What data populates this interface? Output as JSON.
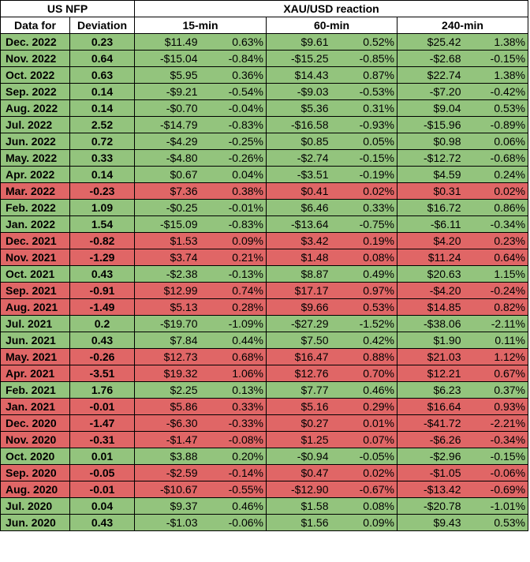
{
  "header": {
    "group_left": "US NFP",
    "group_right": "XAU/USD reaction",
    "col_date": "Data for",
    "col_deviation": "Deviation",
    "col_15": "15-min",
    "col_60": "60-min",
    "col_240": "240-min"
  },
  "colors": {
    "positive_row": "#93c47d",
    "negative_row": "#e06666"
  },
  "rows": [
    {
      "date": "Dec. 2022",
      "dev": "0.23",
      "sign": "pos",
      "d15": "$11.49",
      "p15": "0.63%",
      "d60": "$9.61",
      "p60": "0.52%",
      "d240": "$25.42",
      "p240": "1.38%"
    },
    {
      "date": "Nov. 2022",
      "dev": "0.64",
      "sign": "pos",
      "d15": "-$15.04",
      "p15": "-0.84%",
      "d60": "-$15.25",
      "p60": "-0.85%",
      "d240": "-$2.68",
      "p240": "-0.15%"
    },
    {
      "date": "Oct. 2022",
      "dev": "0.63",
      "sign": "pos",
      "d15": "$5.95",
      "p15": "0.36%",
      "d60": "$14.43",
      "p60": "0.87%",
      "d240": "$22.74",
      "p240": "1.38%"
    },
    {
      "date": "Sep. 2022",
      "dev": "0.14",
      "sign": "pos",
      "d15": "-$9.21",
      "p15": "-0.54%",
      "d60": "-$9.03",
      "p60": "-0.53%",
      "d240": "-$7.20",
      "p240": "-0.42%"
    },
    {
      "date": "Aug. 2022",
      "dev": "0.14",
      "sign": "pos",
      "d15": "-$0.70",
      "p15": "-0.04%",
      "d60": "$5.36",
      "p60": "0.31%",
      "d240": "$9.04",
      "p240": "0.53%"
    },
    {
      "date": "Jul. 2022",
      "dev": "2.52",
      "sign": "pos",
      "d15": "-$14.79",
      "p15": "-0.83%",
      "d60": "-$16.58",
      "p60": "-0.93%",
      "d240": "-$15.96",
      "p240": "-0.89%"
    },
    {
      "date": "Jun. 2022",
      "dev": "0.72",
      "sign": "pos",
      "d15": "-$4.29",
      "p15": "-0.25%",
      "d60": "$0.85",
      "p60": "0.05%",
      "d240": "$0.98",
      "p240": "0.06%"
    },
    {
      "date": "May. 2022",
      "dev": "0.33",
      "sign": "pos",
      "d15": "-$4.80",
      "p15": "-0.26%",
      "d60": "-$2.74",
      "p60": "-0.15%",
      "d240": "-$12.72",
      "p240": "-0.68%"
    },
    {
      "date": "Apr. 2022",
      "dev": "0.14",
      "sign": "pos",
      "d15": "$0.67",
      "p15": "0.04%",
      "d60": "-$3.51",
      "p60": "-0.19%",
      "d240": "$4.59",
      "p240": "0.24%"
    },
    {
      "date": "Mar. 2022",
      "dev": "-0.23",
      "sign": "neg",
      "d15": "$7.36",
      "p15": "0.38%",
      "d60": "$0.41",
      "p60": "0.02%",
      "d240": "$0.31",
      "p240": "0.02%"
    },
    {
      "date": "Feb. 2022",
      "dev": "1.09",
      "sign": "pos",
      "d15": "-$0.25",
      "p15": "-0.01%",
      "d60": "$6.46",
      "p60": "0.33%",
      "d240": "$16.72",
      "p240": "0.86%"
    },
    {
      "date": "Jan. 2022",
      "dev": "1.54",
      "sign": "pos",
      "d15": "-$15.09",
      "p15": "-0.83%",
      "d60": "-$13.64",
      "p60": "-0.75%",
      "d240": "-$6.11",
      "p240": "-0.34%"
    },
    {
      "date": "Dec. 2021",
      "dev": "-0.82",
      "sign": "neg",
      "d15": "$1.53",
      "p15": "0.09%",
      "d60": "$3.42",
      "p60": "0.19%",
      "d240": "$4.20",
      "p240": "0.23%"
    },
    {
      "date": "Nov. 2021",
      "dev": "-1.29",
      "sign": "neg",
      "d15": "$3.74",
      "p15": "0.21%",
      "d60": "$1.48",
      "p60": "0.08%",
      "d240": "$11.24",
      "p240": "0.64%"
    },
    {
      "date": "Oct. 2021",
      "dev": "0.43",
      "sign": "pos",
      "d15": "-$2.38",
      "p15": "-0.13%",
      "d60": "$8.87",
      "p60": "0.49%",
      "d240": "$20.63",
      "p240": "1.15%"
    },
    {
      "date": "Sep. 2021",
      "dev": "-0.91",
      "sign": "neg",
      "d15": "$12.99",
      "p15": "0.74%",
      "d60": "$17.17",
      "p60": "0.97%",
      "d240": "-$4.20",
      "p240": "-0.24%"
    },
    {
      "date": "Aug. 2021",
      "dev": "-1.49",
      "sign": "neg",
      "d15": "$5.13",
      "p15": "0.28%",
      "d60": "$9.66",
      "p60": "0.53%",
      "d240": "$14.85",
      "p240": "0.82%"
    },
    {
      "date": "Jul. 2021",
      "dev": "0.2",
      "sign": "pos",
      "d15": "-$19.70",
      "p15": "-1.09%",
      "d60": "-$27.29",
      "p60": "-1.52%",
      "d240": "-$38.06",
      "p240": "-2.11%"
    },
    {
      "date": "Jun. 2021",
      "dev": "0.43",
      "sign": "pos",
      "d15": "$7.84",
      "p15": "0.44%",
      "d60": "$7.50",
      "p60": "0.42%",
      "d240": "$1.90",
      "p240": "0.11%"
    },
    {
      "date": "May. 2021",
      "dev": "-0.26",
      "sign": "neg",
      "d15": "$12.73",
      "p15": "0.68%",
      "d60": "$16.47",
      "p60": "0.88%",
      "d240": "$21.03",
      "p240": "1.12%"
    },
    {
      "date": "Apr. 2021",
      "dev": "-3.51",
      "sign": "neg",
      "d15": "$19.32",
      "p15": "1.06%",
      "d60": "$12.76",
      "p60": "0.70%",
      "d240": "$12.21",
      "p240": "0.67%"
    },
    {
      "date": "Feb. 2021",
      "dev": "1.76",
      "sign": "pos",
      "d15": "$2.25",
      "p15": "0.13%",
      "d60": "$7.77",
      "p60": "0.46%",
      "d240": "$6.23",
      "p240": "0.37%"
    },
    {
      "date": "Jan. 2021",
      "dev": "-0.01",
      "sign": "neg",
      "d15": "$5.86",
      "p15": "0.33%",
      "d60": "$5.16",
      "p60": "0.29%",
      "d240": "$16.64",
      "p240": "0.93%"
    },
    {
      "date": "Dec. 2020",
      "dev": "-1.47",
      "sign": "neg",
      "d15": "-$6.30",
      "p15": "-0.33%",
      "d60": "$0.27",
      "p60": "0.01%",
      "d240": "-$41.72",
      "p240": "-2.21%"
    },
    {
      "date": "Nov. 2020",
      "dev": "-0.31",
      "sign": "neg",
      "d15": "-$1.47",
      "p15": "-0.08%",
      "d60": "$1.25",
      "p60": "0.07%",
      "d240": "-$6.26",
      "p240": "-0.34%"
    },
    {
      "date": "Oct. 2020",
      "dev": "0.01",
      "sign": "pos",
      "d15": "$3.88",
      "p15": "0.20%",
      "d60": "-$0.94",
      "p60": "-0.05%",
      "d240": "-$2.96",
      "p240": "-0.15%"
    },
    {
      "date": "Sep. 2020",
      "dev": "-0.05",
      "sign": "neg",
      "d15": "-$2.59",
      "p15": "-0.14%",
      "d60": "$0.47",
      "p60": "0.02%",
      "d240": "-$1.05",
      "p240": "-0.06%"
    },
    {
      "date": "Aug. 2020",
      "dev": "-0.01",
      "sign": "neg",
      "d15": "-$10.67",
      "p15": "-0.55%",
      "d60": "-$12.90",
      "p60": "-0.67%",
      "d240": "-$13.42",
      "p240": "-0.69%"
    },
    {
      "date": "Jul. 2020",
      "dev": "0.04",
      "sign": "pos",
      "d15": "$9.37",
      "p15": "0.46%",
      "d60": "$1.58",
      "p60": "0.08%",
      "d240": "-$20.78",
      "p240": "-1.01%"
    },
    {
      "date": "Jun. 2020",
      "dev": "0.43",
      "sign": "pos",
      "d15": "-$1.03",
      "p15": "-0.06%",
      "d60": "$1.56",
      "p60": "0.09%",
      "d240": "$9.43",
      "p240": "0.53%"
    }
  ]
}
